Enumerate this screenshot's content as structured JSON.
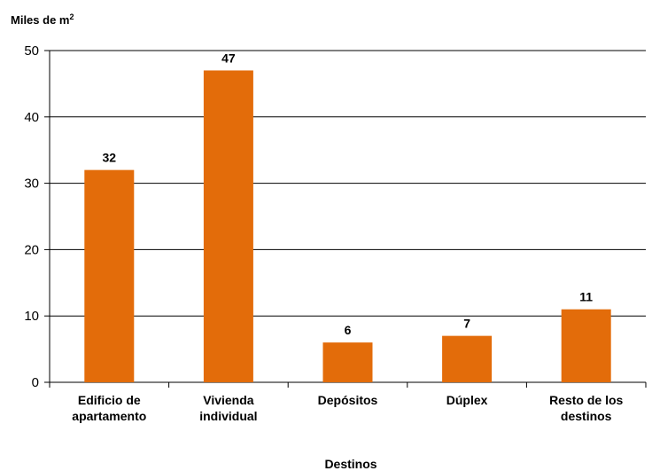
{
  "chart_data": {
    "type": "bar",
    "ylabel_main": "Miles de m",
    "ylabel_sup": "2",
    "xlabel": "Destinos",
    "categories": [
      [
        "Edificio de",
        "apartamento"
      ],
      [
        "Vivienda",
        "individual"
      ],
      [
        "Depósitos"
      ],
      [
        "Dúplex"
      ],
      [
        "Resto de los",
        "destinos"
      ]
    ],
    "values": [
      32,
      47,
      6,
      7,
      11
    ],
    "ylim": [
      0,
      50
    ],
    "yticks": [
      0,
      10,
      20,
      30,
      40,
      50
    ],
    "grid": true,
    "bar_color": "#E36C0A",
    "grid_color": "#000000"
  }
}
